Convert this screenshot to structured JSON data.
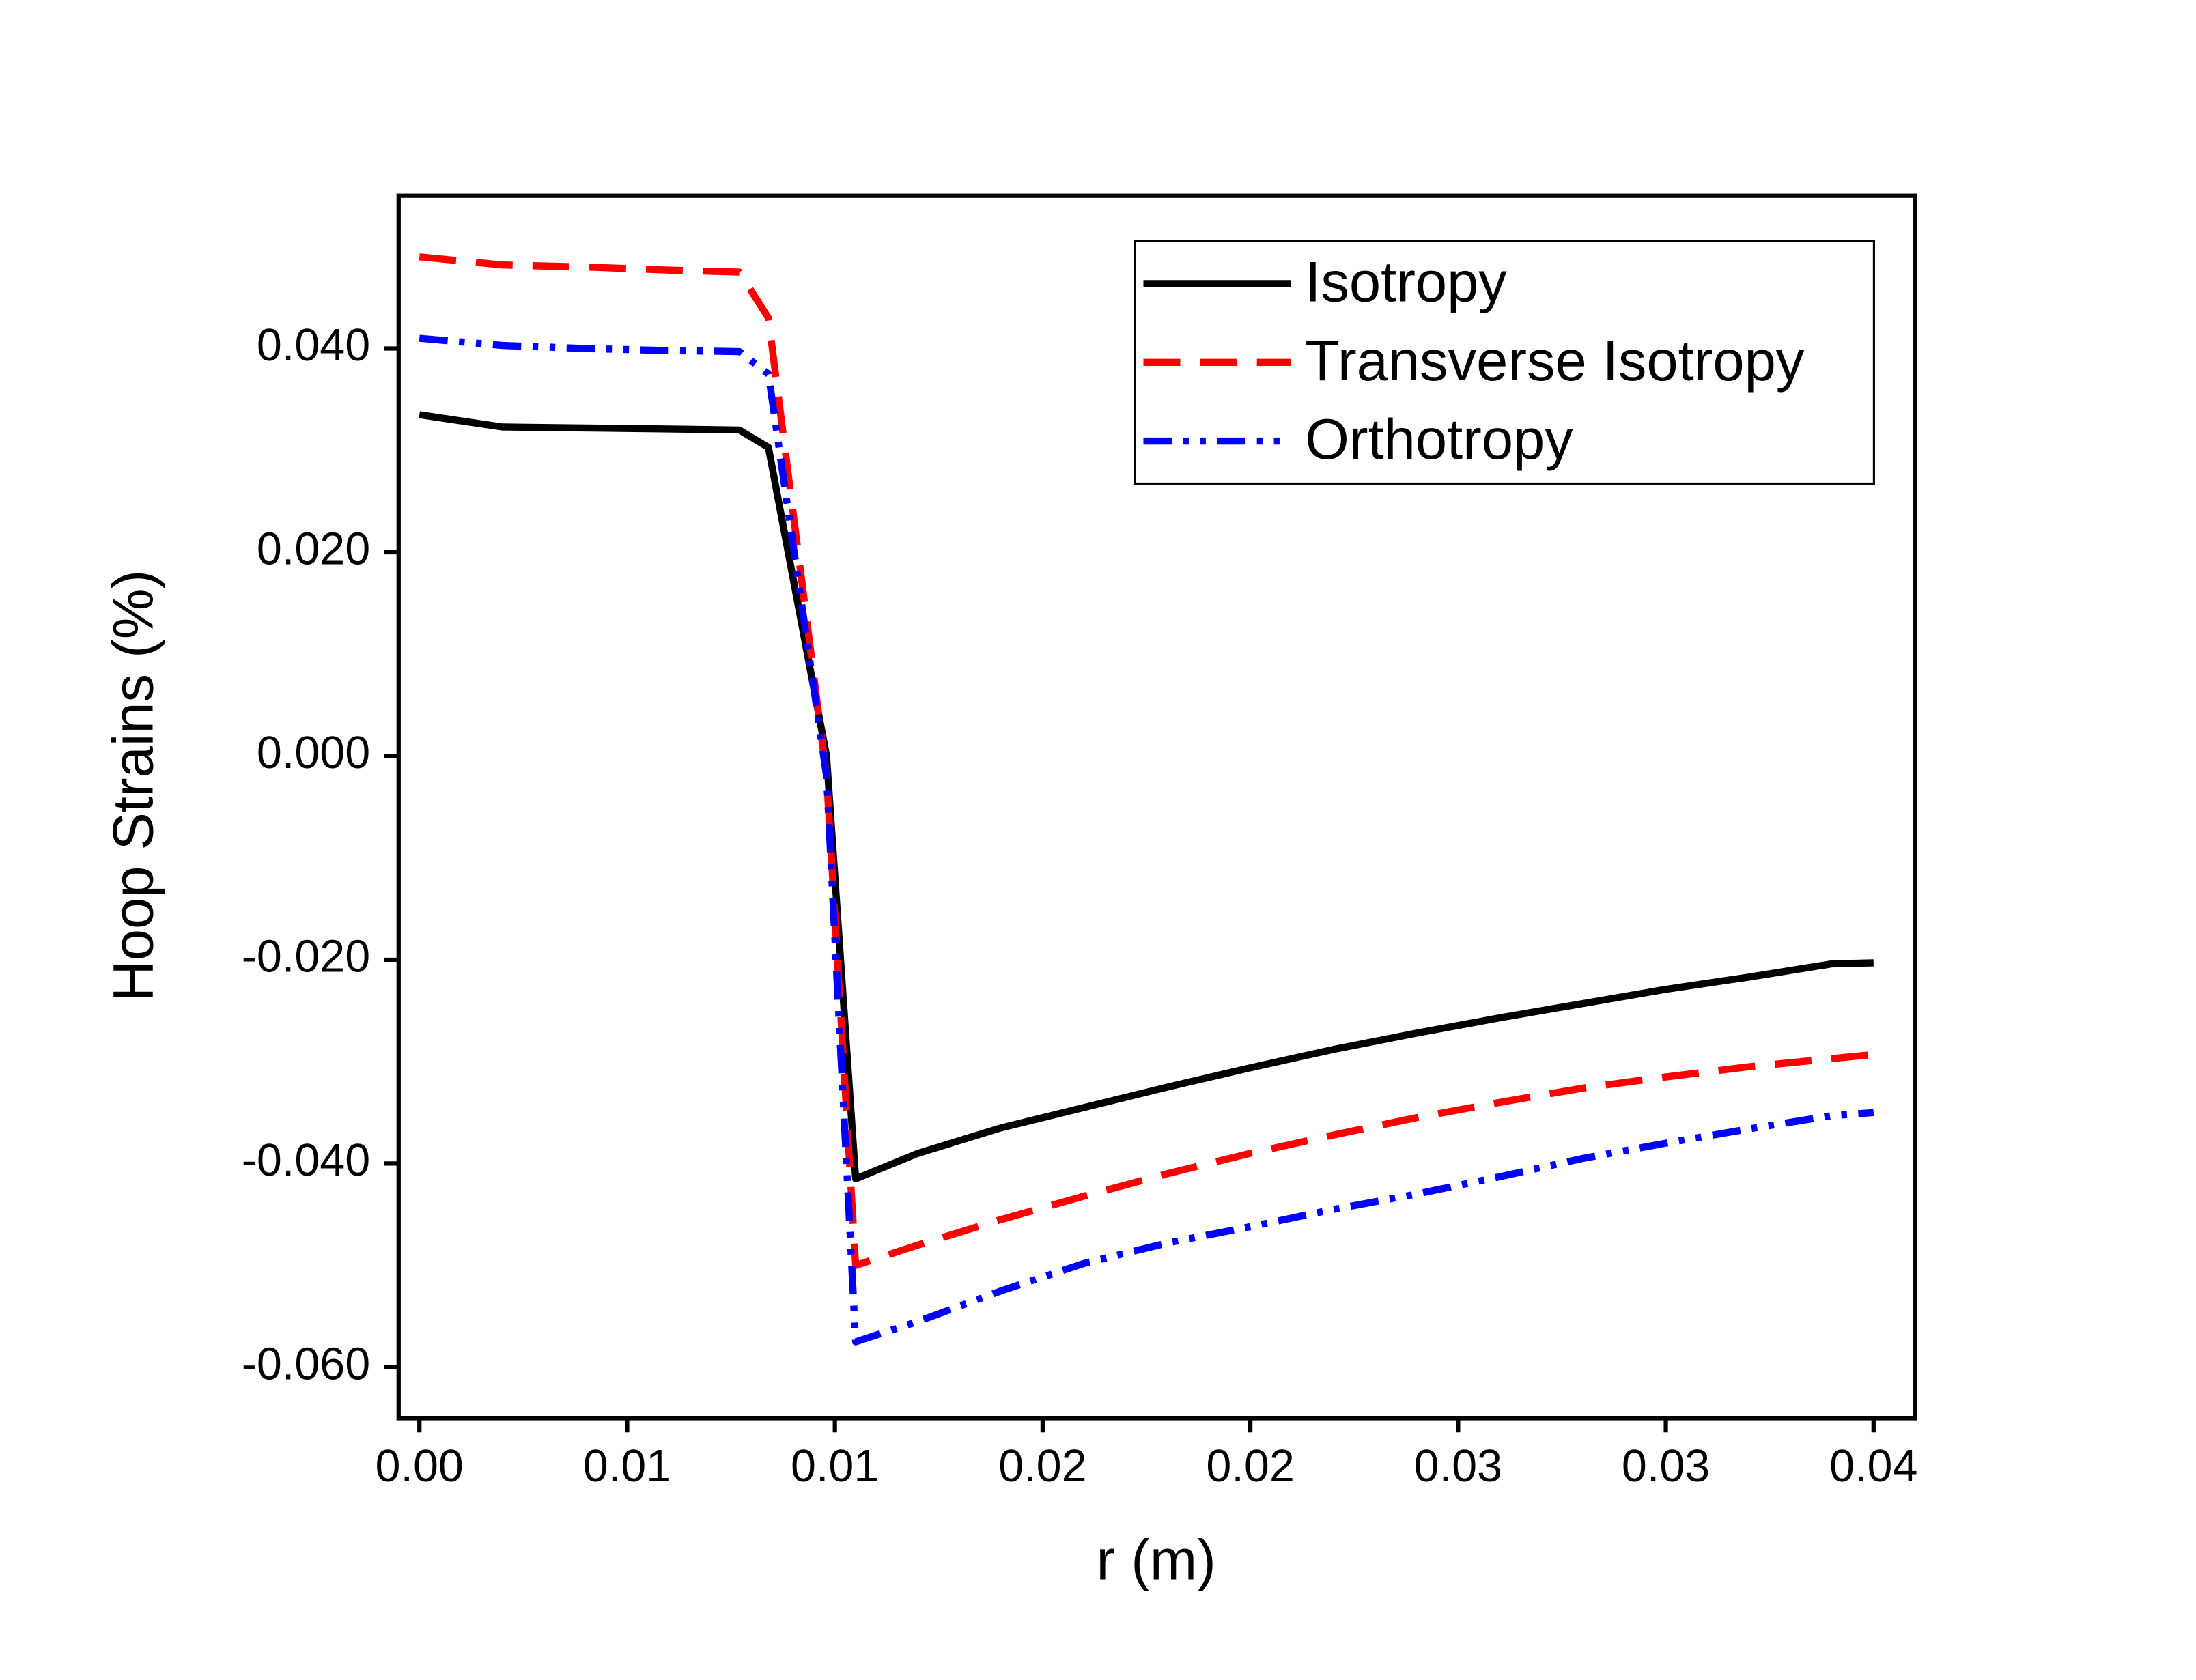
{
  "chart_data": {
    "type": "line",
    "xlabel": "r (m)",
    "ylabel": "Hoop Strains (%)",
    "x": [
      0,
      0.002,
      0.004,
      0.006,
      0.0077,
      0.0084,
      0.0098,
      0.0105,
      0.012,
      0.014,
      0.016,
      0.018,
      0.02,
      0.022,
      0.024,
      0.026,
      0.028,
      0.03,
      0.032,
      0.034,
      0.035
    ],
    "series": [
      {
        "name": "Isotropy",
        "color": "#000000",
        "dash": "solid",
        "values": [
          0.0335,
          0.0323,
          0.0322,
          0.0321,
          0.032,
          0.0303,
          0.0,
          -0.0415,
          -0.039,
          -0.0365,
          -0.0345,
          -0.0325,
          -0.0306,
          -0.0288,
          -0.0272,
          -0.0257,
          -0.0243,
          -0.0229,
          -0.0217,
          -0.0204,
          -0.0203
        ]
      },
      {
        "name": "Transverse Isotropy",
        "color": "#ff0000",
        "dash": "dashed",
        "values": [
          0.049,
          0.0482,
          0.048,
          0.0477,
          0.0475,
          0.043,
          -0.002,
          -0.05,
          -0.048,
          -0.0455,
          -0.0432,
          -0.041,
          -0.039,
          -0.0372,
          -0.0355,
          -0.034,
          -0.0326,
          -0.0315,
          -0.0305,
          -0.0297,
          -0.0293
        ]
      },
      {
        "name": "Orthotropy",
        "color": "#0000ff",
        "dash": "dashdotdot",
        "values": [
          0.041,
          0.0403,
          0.04,
          0.0398,
          0.0397,
          0.0375,
          -0.002,
          -0.0575,
          -0.0555,
          -0.0525,
          -0.0498,
          -0.0478,
          -0.0462,
          -0.0445,
          -0.043,
          -0.0413,
          -0.0395,
          -0.038,
          -0.0366,
          -0.0353,
          -0.035
        ]
      }
    ],
    "xlim": [
      -0.0005,
      0.036
    ],
    "ylim": [
      -0.065,
      0.055
    ],
    "xticks": [
      {
        "value": 0,
        "label": "0.00"
      },
      {
        "value": 0.005,
        "label": "0.01"
      },
      {
        "value": 0.01,
        "label": "0.01"
      },
      {
        "value": 0.015,
        "label": "0.02"
      },
      {
        "value": 0.02,
        "label": "0.02"
      },
      {
        "value": 0.025,
        "label": "0.03"
      },
      {
        "value": 0.03,
        "label": "0.03"
      },
      {
        "value": 0.035,
        "label": "0.04"
      }
    ],
    "yticks": [
      {
        "value": -0.06,
        "label": "-0.060"
      },
      {
        "value": -0.04,
        "label": "-0.040"
      },
      {
        "value": -0.02,
        "label": "-0.020"
      },
      {
        "value": 0,
        "label": "0.000"
      },
      {
        "value": 0.02,
        "label": "0.020"
      },
      {
        "value": 0.04,
        "label": "0.040"
      }
    ],
    "grid": false,
    "legend": "upper right"
  }
}
